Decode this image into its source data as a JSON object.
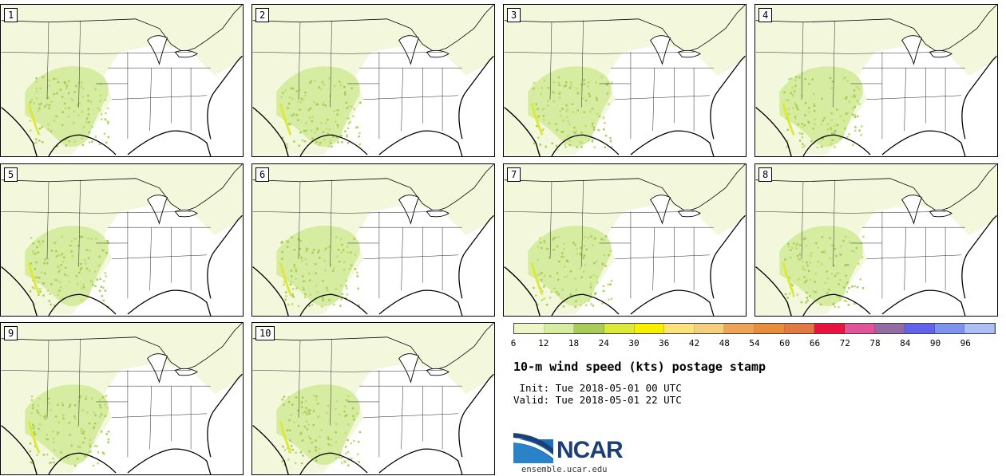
{
  "panels": [
    {
      "label": "1"
    },
    {
      "label": "2"
    },
    {
      "label": "3"
    },
    {
      "label": "4"
    },
    {
      "label": "5"
    },
    {
      "label": "6"
    },
    {
      "label": "7"
    },
    {
      "label": "8"
    },
    {
      "label": "9"
    },
    {
      "label": "10"
    }
  ],
  "legend": {
    "ticks": [
      "6",
      "12",
      "18",
      "24",
      "30",
      "36",
      "42",
      "48",
      "54",
      "60",
      "66",
      "72",
      "78",
      "84",
      "90",
      "96"
    ],
    "colors": [
      "#eef5c6",
      "#d6eca0",
      "#a8cc58",
      "#dde93a",
      "#f7ee00",
      "#fbe27a",
      "#f5cf80",
      "#eea456",
      "#e88d3c",
      "#e07a40",
      "#e8133e",
      "#e0549a",
      "#946da0",
      "#6262ea",
      "#7c94f0",
      "#aebff6"
    ]
  },
  "title": "10-m wind speed (kts) postage stamp",
  "init": " Init: Tue 2018-05-01 00 UTC",
  "valid": "Valid: Tue 2018-05-01 22 UTC",
  "logo": {
    "text": "NCAR",
    "url": "ensemble.ucar.edu",
    "brand_color": "#1d3f76",
    "accent_color": "#2a82c9"
  }
}
